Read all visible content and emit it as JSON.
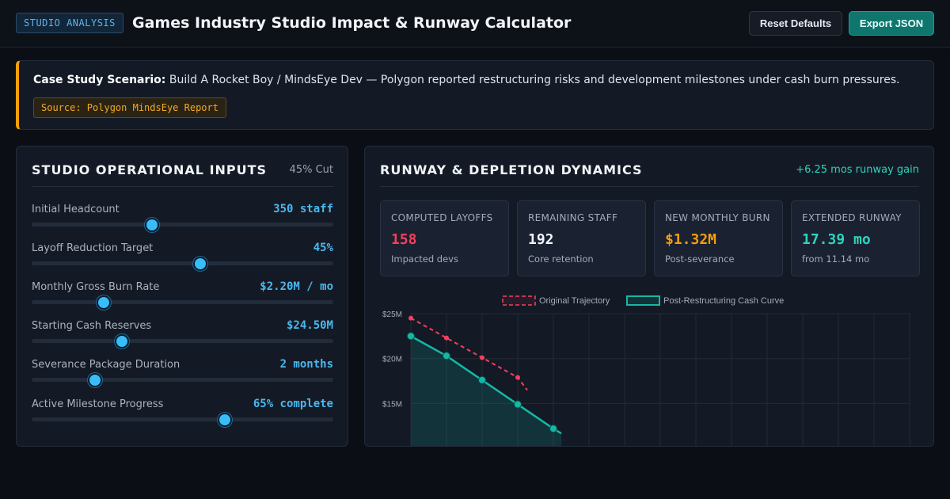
{
  "header": {
    "tag": "STUDIO ANALYSIS",
    "title": "Games Industry Studio Impact & Runway Calculator",
    "reset_label": "Reset Defaults",
    "export_label": "Export JSON"
  },
  "case_study": {
    "lead": "Case Study Scenario:",
    "text": "Build A Rocket Boy / MindsEye Dev — Polygon reported restructuring risks and development milestones under cash burn pressures.",
    "source": "Source: Polygon MindsEye Report"
  },
  "inputs": {
    "title": "STUDIO OPERATIONAL INPUTS",
    "badge": "45% Cut",
    "sliders": [
      {
        "label": "Initial Headcount",
        "value": "350 staff",
        "level": 0.4
      },
      {
        "label": "Layoff Reduction Target",
        "value": "45%",
        "level": 0.56
      },
      {
        "label": "Monthly Gross Burn Rate",
        "value": "$2.20M / mo",
        "level": 0.24
      },
      {
        "label": "Starting Cash Reserves",
        "value": "$24.50M",
        "level": 0.3
      },
      {
        "label": "Severance Package Duration",
        "value": "2 months",
        "level": 0.21
      },
      {
        "label": "Active Milestone Progress",
        "value": "65% complete",
        "level": 0.64
      }
    ]
  },
  "runway": {
    "title": "RUNWAY & DEPLETION DYNAMICS",
    "gain": "+6.25 mos runway gain",
    "stats": [
      {
        "label": "COMPUTED LAYOFFS",
        "value": "158",
        "sub": "Impacted devs",
        "color": "#f43f5e"
      },
      {
        "label": "REMAINING STAFF",
        "value": "192",
        "sub": "Core retention",
        "color": "#f2f4f8"
      },
      {
        "label": "NEW MONTHLY BURN",
        "value": "$1.32M",
        "sub": "Post-severance",
        "color": "#f59e0b"
      },
      {
        "label": "EXTENDED RUNWAY",
        "value": "17.39 mo",
        "sub": "from 11.14 mo",
        "color": "#2dd4bf"
      }
    ]
  },
  "chart_data": {
    "type": "line",
    "x": [
      0,
      1,
      2,
      3,
      4
    ],
    "series": [
      {
        "name": "Original Trajectory",
        "values": [
          24.5,
          22.3,
          20.1,
          17.9,
          null
        ],
        "color": "#f43f5e",
        "style": "dashed"
      },
      {
        "name": "Post-Restructuring Cash Curve",
        "values": [
          22.5,
          20.3,
          17.6,
          14.9,
          12.2
        ],
        "color": "#14b8a6",
        "style": "solid-area"
      }
    ],
    "y_ticks": [
      "$25M",
      "$20M",
      "$15M"
    ],
    "y_tick_values": [
      25,
      20,
      15
    ],
    "ylim": [
      0,
      25
    ],
    "grid": true,
    "legend": "top"
  }
}
